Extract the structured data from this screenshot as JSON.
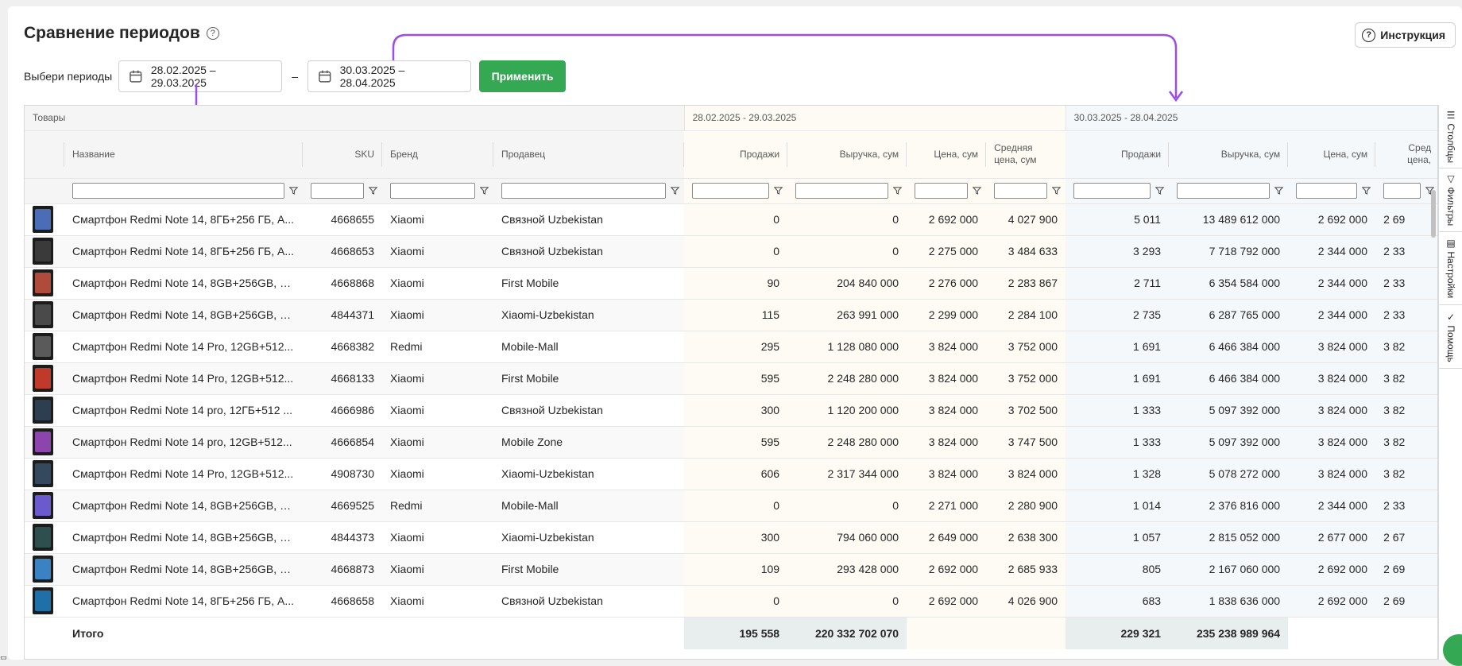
{
  "page": {
    "title": "Сравнение периодов",
    "help_icon": "?",
    "instruction_label": "Инструкция",
    "period_label": "Выбери периоды",
    "date_range_1": "28.02.2025 – 29.03.2025",
    "date_range_2": "30.03.2025 – 28.04.2025",
    "dash": "–",
    "apply_label": "Применить"
  },
  "colors": {
    "accent_green": "#34a853",
    "link_blue": "#1a6fc9",
    "arrow_purple": "#9b4dea"
  },
  "table": {
    "group_products": "Товары",
    "group_period_1": "28.02.2025 - 29.03.2025",
    "group_period_2": "30.03.2025 - 28.04.2025",
    "columns": {
      "name": "Название",
      "sku": "SKU",
      "brand": "Бренд",
      "seller": "Продавец",
      "sales": "Продажи",
      "revenue": "Выручка, сум",
      "price": "Цена, сум",
      "avg_price": "Средняя цена, сум",
      "avg_price_cut": "Сред цена,"
    },
    "rows": [
      {
        "name": "Смартфон Redmi Note 14, 8ГБ+256 ГБ, А...",
        "sku": "4668655",
        "brand": "Xiaomi",
        "seller": "Связной Uzbekistan",
        "s1": "0",
        "r1": "0",
        "p1": "2 692 000",
        "a1": "4 027 900",
        "s2": "5 011",
        "r2": "13 489 612 000",
        "p2": "2 692 000",
        "a2": "2 69"
      },
      {
        "name": "Смартфон Redmi Note 14, 8ГБ+256 ГБ, А...",
        "sku": "4668653",
        "brand": "Xiaomi",
        "seller": "Связной Uzbekistan",
        "s1": "0",
        "r1": "0",
        "p1": "2 275 000",
        "a1": "3 484 633",
        "s2": "3 293",
        "r2": "7 718 792 000",
        "p2": "2 344 000",
        "a2": "2 33"
      },
      {
        "name": "Смартфон Redmi Note 14, 8GB+256GB, А...",
        "sku": "4668868",
        "brand": "Xiaomi",
        "seller": "First Mobile",
        "s1": "90",
        "r1": "204 840 000",
        "p1": "2 276 000",
        "a1": "2 283 867",
        "s2": "2 711",
        "r2": "6 354 584 000",
        "p2": "2 344 000",
        "a2": "2 33"
      },
      {
        "name": "Смартфон Redmi Note 14, 8GB+256GB, А...",
        "sku": "4844371",
        "brand": "Xiaomi",
        "seller": "Xiaomi-Uzbekistan",
        "s1": "115",
        "r1": "263 991 000",
        "p1": "2 299 000",
        "a1": "2 284 100",
        "s2": "2 735",
        "r2": "6 287 765 000",
        "p2": "2 344 000",
        "a2": "2 33"
      },
      {
        "name": "Смартфон Redmi Note 14 Pro, 12GB+512...",
        "sku": "4668382",
        "brand": "Redmi",
        "seller": "Mobile-Mall",
        "s1": "295",
        "r1": "1 128 080 000",
        "p1": "3 824 000",
        "a1": "3 752 000",
        "s2": "1 691",
        "r2": "6 466 384 000",
        "p2": "3 824 000",
        "a2": "3 82"
      },
      {
        "name": "Смартфон Redmi Note 14 Pro, 12GB+512...",
        "sku": "4668133",
        "brand": "Xiaomi",
        "seller": "First Mobile",
        "s1": "595",
        "r1": "2 248 280 000",
        "p1": "3 824 000",
        "a1": "3 752 000",
        "s2": "1 691",
        "r2": "6 466 384 000",
        "p2": "3 824 000",
        "a2": "3 82"
      },
      {
        "name": "Смартфон Redmi Note 14 pro, 12ГБ+512 ...",
        "sku": "4666986",
        "brand": "Xiaomi",
        "seller": "Связной Uzbekistan",
        "s1": "300",
        "r1": "1 120 200 000",
        "p1": "3 824 000",
        "a1": "3 702 500",
        "s2": "1 333",
        "r2": "5 097 392 000",
        "p2": "3 824 000",
        "a2": "3 82"
      },
      {
        "name": "Смартфон Redmi Note 14 pro, 12GB+512...",
        "sku": "4666854",
        "brand": "Xiaomi",
        "seller": "Mobile Zone",
        "s1": "595",
        "r1": "2 248 280 000",
        "p1": "3 824 000",
        "a1": "3 747 500",
        "s2": "1 333",
        "r2": "5 097 392 000",
        "p2": "3 824 000",
        "a2": "3 82"
      },
      {
        "name": "Смартфон Redmi Note 14 Pro, 12GB+512...",
        "sku": "4908730",
        "brand": "Xiaomi",
        "seller": "Xiaomi-Uzbekistan",
        "s1": "606",
        "r1": "2 317 344 000",
        "p1": "3 824 000",
        "a1": "3 824 000",
        "s2": "1 328",
        "r2": "5 078 272 000",
        "p2": "3 824 000",
        "a2": "3 82"
      },
      {
        "name": "Смартфон Redmi Note 14, 8GB+256GB, А...",
        "sku": "4669525",
        "brand": "Redmi",
        "seller": "Mobile-Mall",
        "s1": "0",
        "r1": "0",
        "p1": "2 271 000",
        "a1": "2 280 900",
        "s2": "1 014",
        "r2": "2 376 816 000",
        "p2": "2 344 000",
        "a2": "2 33"
      },
      {
        "name": "Смартфон Redmi Note 14, 8GB+256GB, А...",
        "sku": "4844373",
        "brand": "Xiaomi",
        "seller": "Xiaomi-Uzbekistan",
        "s1": "300",
        "r1": "794 060 000",
        "p1": "2 649 000",
        "a1": "2 638 300",
        "s2": "1 057",
        "r2": "2 815 052 000",
        "p2": "2 677 000",
        "a2": "2 67"
      },
      {
        "name": "Смартфон Redmi Note 14, 8GB+256GB, А...",
        "sku": "4668873",
        "brand": "Xiaomi",
        "seller": "First Mobile",
        "s1": "109",
        "r1": "293 428 000",
        "p1": "2 692 000",
        "a1": "2 685 933",
        "s2": "805",
        "r2": "2 167 060 000",
        "p2": "2 692 000",
        "a2": "2 69"
      },
      {
        "name": "Смартфон Redmi Note 14, 8ГБ+256 ГБ, А...",
        "sku": "4668658",
        "brand": "Xiaomi",
        "seller": "Связной Uzbekistan",
        "s1": "0",
        "r1": "0",
        "p1": "2 692 000",
        "a1": "4 026 900",
        "s2": "683",
        "r2": "1 838 636 000",
        "p2": "2 692 000",
        "a2": "2 69"
      }
    ],
    "totals": {
      "label": "Итого",
      "s1": "195 558",
      "r1": "220 332 702 070",
      "s2": "229 321",
      "r2": "235 238 989 964"
    }
  },
  "side_tabs": {
    "columns": "Столбцы",
    "filters": "Фильтры",
    "settings": "Настройки",
    "help": "Помощь"
  },
  "icons": {
    "columns": "columns-icon",
    "filters": "funnel-icon",
    "settings": "settings-icon",
    "help": "check-icon",
    "calendar": "calendar-icon",
    "chat": "chat-icon"
  }
}
